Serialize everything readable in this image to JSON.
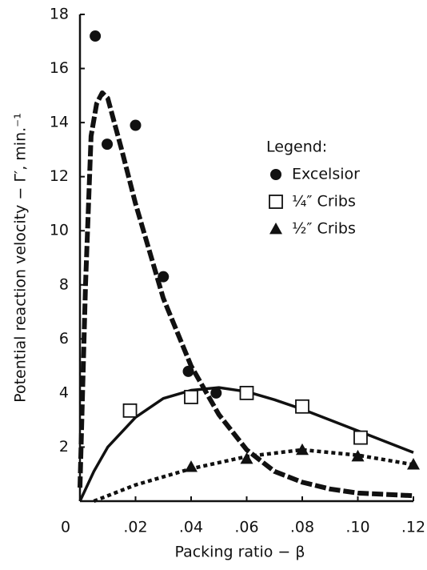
{
  "chart_data": {
    "type": "scatter",
    "xlabel": "Packing ratio  − β",
    "ylabel": "Potential reaction velocity  − Γ′, min.⁻¹",
    "legend_title": "Legend:",
    "legend_position": "upper right",
    "xlim": [
      0,
      0.12
    ],
    "ylim": [
      0,
      18
    ],
    "xticks": [
      0,
      {
        "value": 0.02,
        "label": ".02"
      },
      {
        "value": 0.04,
        "label": ".04"
      },
      {
        "value": 0.06,
        "label": ".06"
      },
      {
        "value": 0.08,
        "label": ".08"
      },
      {
        "value": 0.1,
        "label": ".10"
      },
      {
        "value": 0.12,
        "label": ".12"
      }
    ],
    "yticks": [
      2,
      4,
      6,
      8,
      10,
      12,
      14,
      16,
      18
    ],
    "series": [
      {
        "name": "Excelsior",
        "marker": "circle",
        "color": "#111111",
        "x": [
          0.0055,
          0.0098,
          0.02,
          0.03,
          0.039,
          0.049
        ],
        "values": [
          17.2,
          13.2,
          13.9,
          8.3,
          4.8,
          4.0
        ]
      },
      {
        "name": "¼″ Cribs",
        "marker": "square",
        "color": "#111111",
        "x": [
          0.018,
          0.04,
          0.06,
          0.08,
          0.101
        ],
        "values": [
          3.35,
          3.85,
          4.0,
          3.5,
          2.35
        ]
      },
      {
        "name": "½″ Cribs",
        "marker": "triangle",
        "color": "#111111",
        "x": [
          0.04,
          0.06,
          0.08,
          0.1,
          0.12
        ],
        "values": [
          1.27,
          1.57,
          1.9,
          1.66,
          1.36
        ]
      }
    ],
    "fits": [
      {
        "style": "dashed",
        "color": "#111111",
        "x": [
          0,
          0.002,
          0.004,
          0.006,
          0.008,
          0.01,
          0.015,
          0.02,
          0.03,
          0.04,
          0.05,
          0.06,
          0.07,
          0.08,
          0.09,
          0.1,
          0.12
        ],
        "values": [
          0.5,
          8,
          13.5,
          14.7,
          15.1,
          14.9,
          13,
          11,
          7.5,
          5,
          3.2,
          1.9,
          1.1,
          0.7,
          0.45,
          0.3,
          0.2
        ]
      },
      {
        "style": "solid",
        "color": "#111111",
        "x": [
          0,
          0.005,
          0.01,
          0.02,
          0.03,
          0.04,
          0.05,
          0.06,
          0.07,
          0.08,
          0.09,
          0.1,
          0.12
        ],
        "values": [
          0,
          1.1,
          2.0,
          3.1,
          3.8,
          4.1,
          4.2,
          4.05,
          3.75,
          3.4,
          3.0,
          2.6,
          1.8
        ]
      },
      {
        "style": "dotted",
        "color": "#111111",
        "x": [
          0.005,
          0.02,
          0.04,
          0.06,
          0.08,
          0.1,
          0.12
        ],
        "values": [
          0,
          0.6,
          1.2,
          1.65,
          1.9,
          1.7,
          1.35
        ]
      }
    ]
  }
}
